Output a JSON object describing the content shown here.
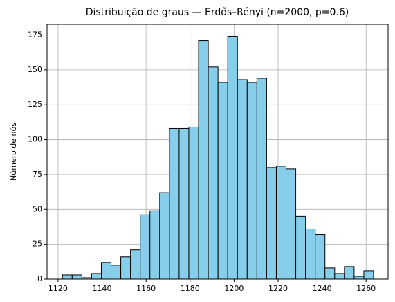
{
  "chart_data": {
    "type": "histogram",
    "title": "Distribuição de graus — Erdős–Rényi (n=2000, p=0.6)",
    "ylabel": "Número de nós",
    "bins": [
      1122,
      1126.42,
      1130.84,
      1135.26,
      1139.68,
      1144.09,
      1148.51,
      1152.93,
      1157.35,
      1161.77,
      1166.19,
      1170.61,
      1175.03,
      1179.44,
      1183.86,
      1188.28,
      1192.7,
      1197.12,
      1201.54,
      1205.96,
      1210.38,
      1214.79,
      1219.21,
      1223.63,
      1228.05,
      1232.47,
      1236.89,
      1241.31,
      1245.73,
      1250.14,
      1254.56,
      1258.98,
      1263.4
    ],
    "counts": [
      3,
      3,
      1,
      4,
      12,
      10,
      16,
      21,
      46,
      49,
      62,
      108,
      108,
      109,
      171,
      152,
      141,
      174,
      143,
      141,
      144,
      80,
      81,
      79,
      45,
      36,
      32,
      8,
      4,
      9,
      2,
      6
    ],
    "color": "#87ceeb",
    "edgecolor": "#000000",
    "xlim": [
      1115,
      1270
    ],
    "xticks": [
      1120,
      1140,
      1160,
      1180,
      1200,
      1220,
      1240,
      1260
    ],
    "ylim": [
      0,
      182.7
    ],
    "yticks": [
      0,
      25,
      50,
      75,
      100,
      125,
      150,
      175
    ],
    "grid": true
  }
}
